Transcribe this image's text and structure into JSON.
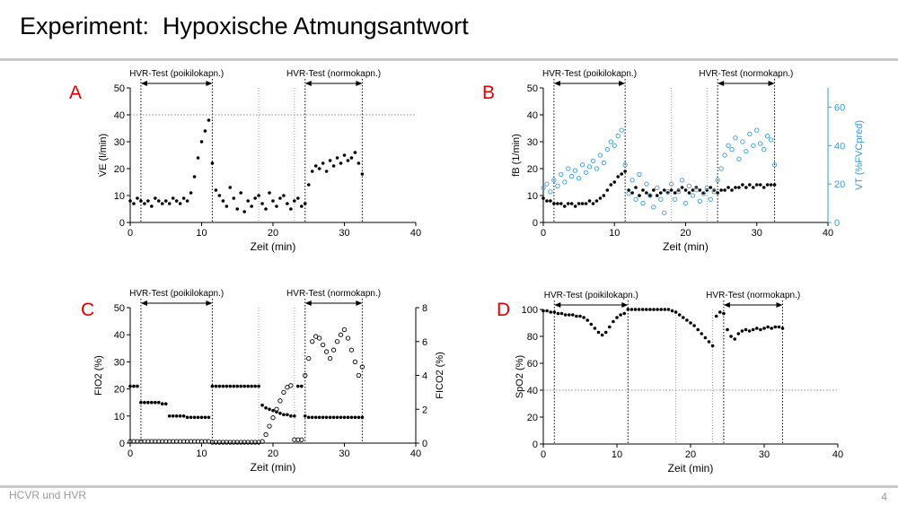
{
  "slide": {
    "title": "Experiment:  Hypoxische Atmungsantwort",
    "footer_left": "HCVR und HVR",
    "page_number": "4"
  },
  "colors": {
    "primary": "#000000",
    "secondary": "#3a9ad9",
    "panel_letter": "#e00000",
    "rule": "#c8c8c8"
  },
  "chart_data": [
    {
      "panel": "A",
      "type": "scatter",
      "xlabel": "Zeit (min)",
      "ylabel": "V̇E (l/min)",
      "xlim": [
        0,
        40
      ],
      "ylim": [
        0,
        50
      ],
      "xticks": [
        0,
        10,
        20,
        30,
        40
      ],
      "yticks": [
        0,
        10,
        20,
        30,
        40,
        50
      ],
      "phases": [
        {
          "label": "HVR-Test (poikilokapn.)",
          "start": 1.5,
          "end": 11.5
        },
        {
          "label": "HVR-Test (normokapn.)",
          "start": 24.5,
          "end": 32.5
        }
      ],
      "vlines_dotted": [
        1.5,
        11.5,
        24.5,
        32.5
      ],
      "vlines_faint": [
        18,
        23
      ],
      "hline_dotted": 40,
      "series": [
        {
          "color": "#000000",
          "marker": "filled",
          "x": [
            0,
            0.5,
            1,
            1.5,
            2,
            2.5,
            3,
            3.5,
            4,
            4.5,
            5,
            5.5,
            6,
            6.5,
            7,
            7.5,
            8,
            8.5,
            9,
            9.5,
            10,
            10.5,
            11,
            11.5,
            12,
            12.5,
            13,
            13.5,
            14,
            14.5,
            15,
            15.5,
            16,
            16.5,
            17,
            17.5,
            18,
            18.5,
            19,
            19.5,
            20,
            20.5,
            21,
            21.5,
            22,
            22.5,
            23,
            23.5,
            24,
            24.5,
            25,
            25.5,
            26,
            26.5,
            27,
            27.5,
            28,
            28.5,
            29,
            29.5,
            30,
            30.5,
            31,
            31.5,
            32,
            32.5
          ],
          "y": [
            8,
            7,
            9,
            8,
            7,
            8,
            6,
            9,
            8,
            7,
            8,
            7,
            9,
            8,
            7,
            9,
            8,
            11,
            17,
            24,
            30,
            34,
            38,
            22,
            12,
            10,
            8,
            6,
            13,
            9,
            5,
            11,
            4,
            8,
            6,
            9,
            10,
            7,
            5,
            11,
            8,
            6,
            9,
            10,
            7,
            5,
            8,
            9,
            6,
            7,
            14,
            19,
            21,
            20,
            22,
            19,
            23,
            21,
            24,
            22,
            25,
            23,
            24,
            26,
            22,
            18
          ]
        }
      ]
    },
    {
      "panel": "B",
      "type": "scatter",
      "xlabel": "Zeit (min)",
      "ylabel": "fB (1/min)",
      "ylabel2": "VT (%FVCpred)",
      "xlim": [
        0,
        40
      ],
      "ylim": [
        0,
        50
      ],
      "ylim2": [
        0,
        70
      ],
      "xticks": [
        0,
        10,
        20,
        30,
        40
      ],
      "yticks": [
        0,
        10,
        20,
        30,
        40,
        50
      ],
      "yticks2": [
        0,
        20,
        40,
        60
      ],
      "phases": [
        {
          "label": "HVR-Test (poikilokapn.)",
          "start": 1.5,
          "end": 11.5
        },
        {
          "label": "HVR-Test (normokapn.)",
          "start": 24.5,
          "end": 32.5
        }
      ],
      "vlines_dotted": [
        1.5,
        11.5,
        24.5,
        32.5
      ],
      "vlines_faint": [
        18,
        23
      ],
      "series": [
        {
          "color": "#000000",
          "marker": "filled",
          "axis": "left",
          "x": [
            0,
            0.5,
            1,
            1.5,
            2,
            2.5,
            3,
            3.5,
            4,
            4.5,
            5,
            5.5,
            6,
            6.5,
            7,
            7.5,
            8,
            8.5,
            9,
            9.5,
            10,
            10.5,
            11,
            11.5,
            12,
            12.5,
            13,
            13.5,
            14,
            14.5,
            15,
            15.5,
            16,
            16.5,
            17,
            17.5,
            18,
            18.5,
            19,
            19.5,
            20,
            20.5,
            21,
            21.5,
            22,
            22.5,
            23,
            23.5,
            24,
            24.5,
            25,
            25.5,
            26,
            26.5,
            27,
            27.5,
            28,
            28.5,
            29,
            29.5,
            30,
            30.5,
            31,
            31.5,
            32,
            32.5
          ],
          "y": [
            9,
            8,
            8,
            7,
            7,
            7,
            6,
            7,
            7,
            6,
            7,
            7,
            7,
            8,
            7,
            8,
            9,
            10,
            12,
            14,
            15,
            17,
            18,
            19,
            12,
            11,
            13,
            10,
            12,
            11,
            10,
            12,
            10,
            11,
            12,
            11,
            12,
            11,
            12,
            13,
            12,
            11,
            12,
            13,
            12,
            11,
            12,
            13,
            12,
            11,
            12,
            12,
            13,
            12,
            13,
            13,
            14,
            13,
            14,
            13,
            14,
            14,
            13,
            14,
            14,
            14
          ]
        },
        {
          "color": "#3a9ad9",
          "marker": "open",
          "axis": "right",
          "x": [
            0,
            0.5,
            1,
            1.5,
            2,
            2.5,
            3,
            3.5,
            4,
            4.5,
            5,
            5.5,
            6,
            6.5,
            7,
            7.5,
            8,
            8.5,
            9,
            9.5,
            10,
            10.5,
            11,
            11.5,
            12,
            12.5,
            13,
            13.5,
            14,
            14.5,
            15,
            15.5,
            16,
            16.5,
            17,
            17.5,
            18,
            18.5,
            19,
            19.5,
            20,
            20.5,
            21,
            21.5,
            22,
            22.5,
            23,
            23.5,
            24,
            24.5,
            25,
            25.5,
            26,
            26.5,
            27,
            27.5,
            28,
            28.5,
            29,
            29.5,
            30,
            30.5,
            31,
            31.5,
            32,
            32.5
          ],
          "y": [
            18,
            20,
            16,
            22,
            19,
            25,
            21,
            28,
            24,
            27,
            23,
            30,
            26,
            29,
            32,
            28,
            35,
            31,
            38,
            42,
            40,
            45,
            48,
            30,
            15,
            22,
            12,
            25,
            10,
            20,
            14,
            8,
            18,
            12,
            5,
            16,
            20,
            12,
            16,
            22,
            10,
            19,
            14,
            17,
            11,
            15,
            18,
            12,
            16,
            22,
            28,
            35,
            40,
            38,
            44,
            33,
            42,
            37,
            46,
            40,
            48,
            41,
            38,
            45,
            43,
            30
          ]
        }
      ]
    },
    {
      "panel": "C",
      "type": "scatter",
      "xlabel": "Zeit (min)",
      "ylabel": "FIO2 (%)",
      "ylabel2": "FICO2 (%)",
      "xlim": [
        0,
        40
      ],
      "ylim": [
        0,
        50
      ],
      "ylim2": [
        0,
        8
      ],
      "xticks": [
        0,
        10,
        20,
        30,
        40
      ],
      "yticks": [
        0,
        10,
        20,
        30,
        40,
        50
      ],
      "yticks2": [
        0,
        2,
        4,
        6,
        8
      ],
      "phases": [
        {
          "label": "HVR-Test (poikilokapn.)",
          "start": 1.5,
          "end": 11.5
        },
        {
          "label": "HVR-Test (normokapn.)",
          "start": 24.5,
          "end": 32.5
        }
      ],
      "vlines_dotted": [
        1.5,
        11.5,
        24.5,
        32.5
      ],
      "vlines_faint": [
        18,
        23
      ],
      "series": [
        {
          "color": "#000000",
          "marker": "filled",
          "axis": "left",
          "x": [
            0,
            0.5,
            1,
            1.5,
            2,
            2.5,
            3,
            3.5,
            4,
            4.5,
            5,
            5.5,
            6,
            6.5,
            7,
            7.5,
            8,
            8.5,
            9,
            9.5,
            10,
            10.5,
            11,
            11.5,
            12,
            12.5,
            13,
            13.5,
            14,
            14.5,
            15,
            15.5,
            16,
            16.5,
            17,
            17.5,
            18,
            18.5,
            19,
            19.5,
            20,
            20.5,
            21,
            21.5,
            22,
            22.5,
            23,
            23.5,
            24,
            24.5,
            25,
            25.5,
            26,
            26.5,
            27,
            27.5,
            28,
            28.5,
            29,
            29.5,
            30,
            30.5,
            31,
            31.5,
            32,
            32.5
          ],
          "y": [
            21,
            21,
            21,
            15,
            15,
            15,
            15,
            15,
            15,
            14.5,
            14.5,
            10,
            10,
            10,
            10,
            10,
            9.5,
            9.5,
            9.5,
            9.5,
            9.5,
            9.5,
            9.5,
            21,
            21,
            21,
            21,
            21,
            21,
            21,
            21,
            21,
            21,
            21,
            21,
            21,
            21,
            14,
            13,
            12.5,
            12,
            11.5,
            11,
            10.5,
            10.5,
            10,
            10,
            21,
            21,
            10,
            9.5,
            9.5,
            9.5,
            9.5,
            9.5,
            9.5,
            9.5,
            9.5,
            9.5,
            9.5,
            9.5,
            9.5,
            9.5,
            9.5,
            9.5,
            9.5
          ]
        },
        {
          "color": "#000000",
          "marker": "open",
          "axis": "right",
          "x": [
            0,
            0.5,
            1,
            1.5,
            2,
            2.5,
            3,
            3.5,
            4,
            4.5,
            5,
            5.5,
            6,
            6.5,
            7,
            7.5,
            8,
            8.5,
            9,
            9.5,
            10,
            10.5,
            11,
            11.5,
            12,
            12.5,
            13,
            13.5,
            14,
            14.5,
            15,
            15.5,
            16,
            16.5,
            17,
            17.5,
            18,
            18.5,
            19,
            19.5,
            20,
            20.5,
            21,
            21.5,
            22,
            22.5,
            23,
            23.5,
            24,
            24.5,
            25,
            25.5,
            26,
            26.5,
            27,
            27.5,
            28,
            28.5,
            29,
            29.5,
            30,
            30.5,
            31,
            31.5,
            32,
            32.5
          ],
          "y": [
            0.1,
            0.1,
            0.1,
            0.1,
            0.1,
            0.1,
            0.1,
            0.1,
            0.1,
            0.1,
            0.1,
            0.1,
            0.1,
            0.1,
            0.1,
            0.1,
            0.1,
            0.1,
            0.1,
            0.1,
            0.1,
            0.1,
            0.1,
            0.05,
            0.05,
            0.05,
            0.05,
            0.05,
            0.05,
            0.05,
            0.05,
            0.05,
            0.05,
            0.05,
            0.05,
            0.05,
            0.05,
            0.1,
            0.5,
            1,
            1.5,
            2,
            2.5,
            3,
            3.3,
            3.4,
            0.2,
            0.2,
            0.2,
            4,
            5,
            6,
            6.3,
            6.2,
            5.8,
            5.4,
            5,
            5.5,
            6,
            6.4,
            6.7,
            6.2,
            5.5,
            4.8,
            4,
            4.5
          ]
        }
      ]
    },
    {
      "panel": "D",
      "type": "scatter",
      "xlabel": "Zeit (min)",
      "ylabel": "SpO2 (%)",
      "xlim": [
        0,
        40
      ],
      "ylim": [
        0,
        100
      ],
      "xticks": [
        0,
        10,
        20,
        30,
        40
      ],
      "yticks": [
        0,
        20,
        40,
        60,
        80,
        100
      ],
      "phases": [
        {
          "label": "HVR-Test (poikilokapn.)",
          "start": 1.5,
          "end": 11.5
        },
        {
          "label": "HVR-Test (normokapn.)",
          "start": 24.5,
          "end": 32.5
        }
      ],
      "vlines_dotted": [
        1.5,
        11.5,
        24.5,
        32.5
      ],
      "vlines_faint": [
        18,
        23
      ],
      "hline_dotted": 40,
      "series": [
        {
          "color": "#000000",
          "marker": "filled",
          "x": [
            0,
            0.5,
            1,
            1.5,
            2,
            2.5,
            3,
            3.5,
            4,
            4.5,
            5,
            5.5,
            6,
            6.5,
            7,
            7.5,
            8,
            8.5,
            9,
            9.5,
            10,
            10.5,
            11,
            11.5,
            12,
            12.5,
            13,
            13.5,
            14,
            14.5,
            15,
            15.5,
            16,
            16.5,
            17,
            17.5,
            18,
            18.5,
            19,
            19.5,
            20,
            20.5,
            21,
            21.5,
            22,
            22.5,
            23,
            23.5,
            24,
            24.5,
            25,
            25.5,
            26,
            26.5,
            27,
            27.5,
            28,
            28.5,
            29,
            29.5,
            30,
            30.5,
            31,
            31.5,
            32,
            32.5
          ],
          "y": [
            99,
            99,
            98,
            98,
            97,
            97,
            96,
            96,
            96,
            95,
            95,
            94,
            92,
            89,
            86,
            83,
            81,
            83,
            87,
            91,
            94,
            96,
            97,
            100,
            100,
            100,
            100,
            100,
            100,
            100,
            100,
            100,
            100,
            100,
            100,
            99,
            98,
            96,
            94,
            92,
            90,
            88,
            85,
            82,
            79,
            76,
            73,
            95,
            98,
            97,
            85,
            80,
            78,
            82,
            84,
            85,
            84,
            85,
            86,
            85,
            86,
            87,
            86,
            87,
            87,
            86
          ]
        }
      ]
    }
  ]
}
